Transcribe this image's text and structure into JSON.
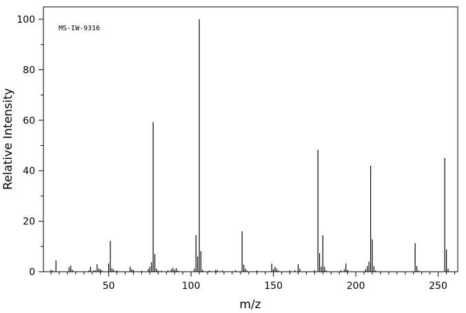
{
  "chart_data": {
    "type": "bar",
    "annotation": "MS-IW-9316",
    "xlabel": "m/z",
    "ylabel": "Relative Intensity",
    "xlim": [
      10,
      262
    ],
    "ylim": [
      0,
      105
    ],
    "x_ticks": [
      50,
      100,
      150,
      200,
      250
    ],
    "y_ticks": [
      0,
      20,
      40,
      60,
      80,
      100
    ],
    "x_minor_step": 5,
    "y_minor_step": 10,
    "grid": false,
    "legend": "none",
    "peaks": [
      {
        "mz": 15,
        "intensity": 0.8
      },
      {
        "mz": 16,
        "intensity": 0.4
      },
      {
        "mz": 18,
        "intensity": 4.5
      },
      {
        "mz": 26,
        "intensity": 1.8
      },
      {
        "mz": 27,
        "intensity": 2.4
      },
      {
        "mz": 28,
        "intensity": 0.8
      },
      {
        "mz": 38,
        "intensity": 0.6
      },
      {
        "mz": 39,
        "intensity": 2.0
      },
      {
        "mz": 41,
        "intensity": 0.6
      },
      {
        "mz": 42,
        "intensity": 0.5
      },
      {
        "mz": 43,
        "intensity": 3.0
      },
      {
        "mz": 44,
        "intensity": 1.2
      },
      {
        "mz": 45,
        "intensity": 1.0
      },
      {
        "mz": 46,
        "intensity": 0.5
      },
      {
        "mz": 50,
        "intensity": 3.2
      },
      {
        "mz": 51,
        "intensity": 12.2
      },
      {
        "mz": 52,
        "intensity": 1.4
      },
      {
        "mz": 53,
        "intensity": 0.8
      },
      {
        "mz": 55,
        "intensity": 0.5
      },
      {
        "mz": 63,
        "intensity": 2.0
      },
      {
        "mz": 64,
        "intensity": 1.0
      },
      {
        "mz": 65,
        "intensity": 0.8
      },
      {
        "mz": 70,
        "intensity": 0.4
      },
      {
        "mz": 74,
        "intensity": 1.0
      },
      {
        "mz": 75,
        "intensity": 2.0
      },
      {
        "mz": 76,
        "intensity": 3.8
      },
      {
        "mz": 77,
        "intensity": 59.3
      },
      {
        "mz": 78,
        "intensity": 7.0
      },
      {
        "mz": 79,
        "intensity": 1.2
      },
      {
        "mz": 80,
        "intensity": 0.4
      },
      {
        "mz": 82,
        "intensity": 0.4
      },
      {
        "mz": 86,
        "intensity": 0.6
      },
      {
        "mz": 88,
        "intensity": 1.0
      },
      {
        "mz": 89,
        "intensity": 1.5
      },
      {
        "mz": 90,
        "intensity": 0.8
      },
      {
        "mz": 91,
        "intensity": 1.4
      },
      {
        "mz": 92,
        "intensity": 0.5
      },
      {
        "mz": 102,
        "intensity": 1.2
      },
      {
        "mz": 103,
        "intensity": 14.5
      },
      {
        "mz": 104,
        "intensity": 6.0
      },
      {
        "mz": 105,
        "intensity": 100.0
      },
      {
        "mz": 106,
        "intensity": 8.2
      },
      {
        "mz": 107,
        "intensity": 0.8
      },
      {
        "mz": 111,
        "intensity": 0.5
      },
      {
        "mz": 115,
        "intensity": 0.8
      },
      {
        "mz": 116,
        "intensity": 0.6
      },
      {
        "mz": 119,
        "intensity": 0.5
      },
      {
        "mz": 127,
        "intensity": 0.6
      },
      {
        "mz": 131,
        "intensity": 16.0
      },
      {
        "mz": 132,
        "intensity": 2.8
      },
      {
        "mz": 133,
        "intensity": 1.2
      },
      {
        "mz": 134,
        "intensity": 0.4
      },
      {
        "mz": 140,
        "intensity": 0.5
      },
      {
        "mz": 149,
        "intensity": 3.2
      },
      {
        "mz": 150,
        "intensity": 1.0
      },
      {
        "mz": 151,
        "intensity": 2.0
      },
      {
        "mz": 152,
        "intensity": 1.2
      },
      {
        "mz": 153,
        "intensity": 0.5
      },
      {
        "mz": 160,
        "intensity": 0.5
      },
      {
        "mz": 163,
        "intensity": 0.6
      },
      {
        "mz": 165,
        "intensity": 3.0
      },
      {
        "mz": 166,
        "intensity": 1.2
      },
      {
        "mz": 175,
        "intensity": 0.6
      },
      {
        "mz": 177,
        "intensity": 48.3
      },
      {
        "mz": 178,
        "intensity": 7.4
      },
      {
        "mz": 179,
        "intensity": 2.0
      },
      {
        "mz": 180,
        "intensity": 14.5
      },
      {
        "mz": 181,
        "intensity": 2.0
      },
      {
        "mz": 182,
        "intensity": 0.5
      },
      {
        "mz": 191,
        "intensity": 0.6
      },
      {
        "mz": 193,
        "intensity": 1.0
      },
      {
        "mz": 194,
        "intensity": 3.2
      },
      {
        "mz": 195,
        "intensity": 0.8
      },
      {
        "mz": 206,
        "intensity": 1.0
      },
      {
        "mz": 207,
        "intensity": 2.2
      },
      {
        "mz": 208,
        "intensity": 4.0
      },
      {
        "mz": 209,
        "intensity": 42.0
      },
      {
        "mz": 210,
        "intensity": 12.8
      },
      {
        "mz": 211,
        "intensity": 2.2
      },
      {
        "mz": 212,
        "intensity": 0.5
      },
      {
        "mz": 236,
        "intensity": 11.3
      },
      {
        "mz": 237,
        "intensity": 2.2
      },
      {
        "mz": 238,
        "intensity": 0.5
      },
      {
        "mz": 254,
        "intensity": 45.0
      },
      {
        "mz": 255,
        "intensity": 8.8
      },
      {
        "mz": 256,
        "intensity": 1.2
      }
    ]
  }
}
